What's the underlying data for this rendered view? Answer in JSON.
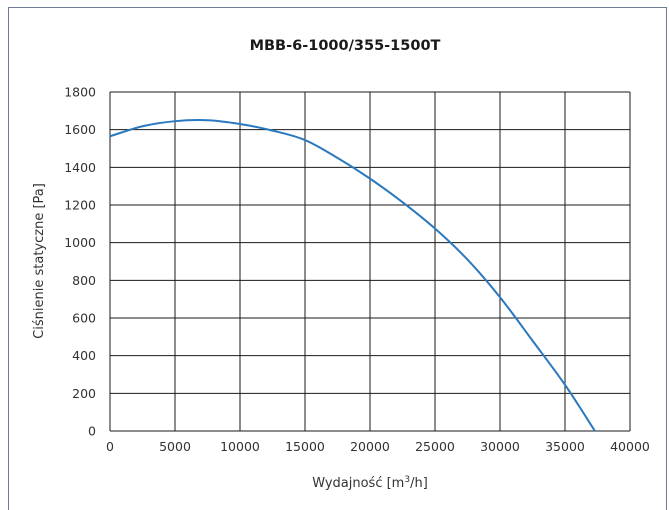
{
  "chart_data": {
    "type": "line",
    "title": "MBB-6-1000/355-1500T",
    "xlabel_main": "Wydajność [m",
    "xlabel_sup": "3",
    "xlabel_end": "/h]",
    "ylabel": "Ciśnienie statyczne [Pa]",
    "xlim": [
      0,
      40000
    ],
    "ylim": [
      0,
      1800
    ],
    "xticks": [
      0,
      5000,
      10000,
      15000,
      20000,
      25000,
      30000,
      35000,
      40000
    ],
    "xtick_labels": [
      "0",
      "5000",
      "10000",
      "15000",
      "20000",
      "25000",
      "30000",
      "35000",
      "40000"
    ],
    "yticks": [
      0,
      200,
      400,
      600,
      800,
      1000,
      1200,
      1400,
      1600,
      1800
    ],
    "ytick_labels": [
      "0",
      "200",
      "400",
      "600",
      "800",
      "1000",
      "1200",
      "1400",
      "1600",
      "1800"
    ],
    "grid": true,
    "series": [
      {
        "color": "#2a78bf",
        "x": [
          0,
          2500,
          5000,
          7500,
          10000,
          12500,
          15000,
          17500,
          20000,
          22500,
          25000,
          27500,
          30000,
          32500,
          35000,
          37300
        ],
        "y": [
          1565,
          1618,
          1645,
          1650,
          1630,
          1595,
          1545,
          1450,
          1340,
          1215,
          1075,
          910,
          710,
          480,
          245,
          0
        ]
      }
    ]
  }
}
